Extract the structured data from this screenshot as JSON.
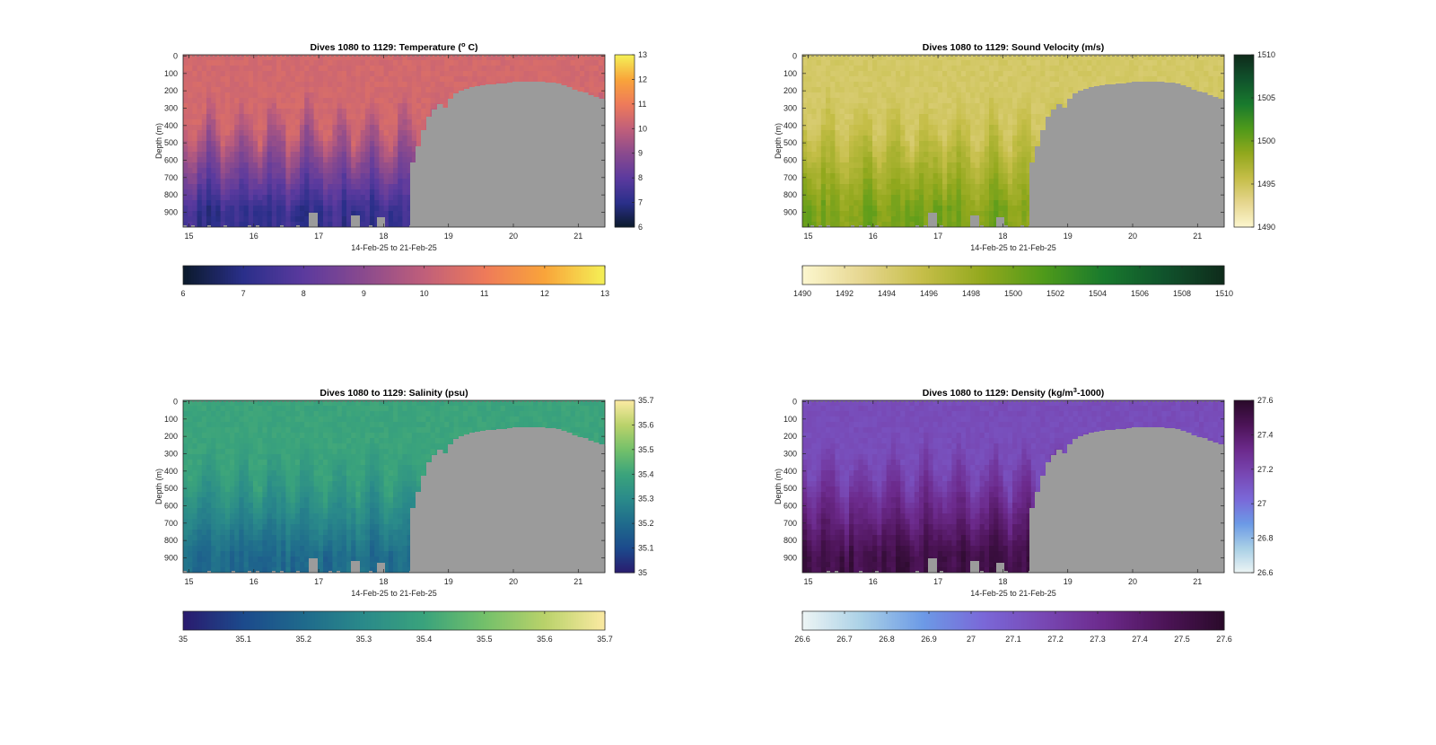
{
  "shared": {
    "xlabel": "14-Feb-25 to 21-Feb-25",
    "ylabel": "Depth (m)",
    "xticks": [
      "15",
      "16",
      "17",
      "18",
      "19",
      "20",
      "21"
    ],
    "yticks": [
      "0",
      "100",
      "200",
      "300",
      "400",
      "500",
      "600",
      "700",
      "800",
      "900"
    ],
    "mask_color": "#9b9b9b"
  },
  "chart_data": [
    {
      "type": "heatmap",
      "title_pre": "Dives 1080 to 1129: Temperature (",
      "title_sup": "o",
      "title_post": " C)",
      "xlabel": "14-Feb-25 to 21-Feb-25",
      "ylabel": "Depth (m)",
      "x_range": [
        "14-Feb-25 21:00",
        "21-Feb-25 09:00"
      ],
      "y_range_m": [
        0,
        990
      ],
      "y_reversed": true,
      "color_range": [
        6,
        13
      ],
      "cbar_vertical_ticks": [
        "6",
        "7",
        "8",
        "9",
        "10",
        "11",
        "12",
        "13"
      ],
      "cbar_horizontal_ticks": [
        "6",
        "7",
        "8",
        "9",
        "10",
        "11",
        "12",
        "13"
      ],
      "colormap": [
        "#0b1a2b",
        "#2a2f8a",
        "#5b3a9e",
        "#8a4a8e",
        "#c05f7a",
        "#ee7a5a",
        "#f9a43a",
        "#f4f056"
      ],
      "surface_value": 10.4,
      "deep_value": 7.3
    },
    {
      "type": "heatmap",
      "title_pre": "Dives 1080 to 1129: Sound Velocity (m/s)",
      "title_sup": "",
      "title_post": "",
      "xlabel": "14-Feb-25 to 21-Feb-25",
      "ylabel": "Depth (m)",
      "x_range": [
        "14-Feb-25 21:00",
        "21-Feb-25 09:00"
      ],
      "y_range_m": [
        0,
        990
      ],
      "y_reversed": true,
      "color_range": [
        1490,
        1510
      ],
      "cbar_vertical_ticks": [
        "1490",
        "1495",
        "1500",
        "1505",
        "1510"
      ],
      "cbar_horizontal_ticks": [
        "1490",
        "1492",
        "1494",
        "1496",
        "1498",
        "1500",
        "1502",
        "1504",
        "1506",
        "1508",
        "1510"
      ],
      "colormap": [
        "#fdf7cf",
        "#e6d68f",
        "#c5be48",
        "#92a81d",
        "#4f9a1a",
        "#197a2d",
        "#10532c",
        "#0f2b1b"
      ],
      "surface_value": 1494.5,
      "deep_value": 1499.5
    },
    {
      "type": "heatmap",
      "title_pre": "Dives 1080 to 1129: Salinity (psu)",
      "title_sup": "",
      "title_post": "",
      "xlabel": "14-Feb-25 to 21-Feb-25",
      "ylabel": "Depth (m)",
      "x_range": [
        "14-Feb-25 21:00",
        "21-Feb-25 09:00"
      ],
      "y_range_m": [
        0,
        990
      ],
      "y_reversed": true,
      "color_range": [
        35,
        35.7
      ],
      "cbar_vertical_ticks": [
        "35",
        "35.1",
        "35.2",
        "35.3",
        "35.4",
        "35.5",
        "35.6",
        "35.7"
      ],
      "cbar_horizontal_ticks": [
        "35",
        "35.1",
        "35.2",
        "35.3",
        "35.4",
        "35.5",
        "35.6",
        "35.7"
      ],
      "colormap": [
        "#2a1b6e",
        "#1c4a8c",
        "#1f6a8c",
        "#2a8a8a",
        "#3aa37c",
        "#73c06a",
        "#b9d26a",
        "#fbeaa2"
      ],
      "surface_value": 35.4,
      "deep_value": 35.2
    },
    {
      "type": "heatmap",
      "title_pre": "Dives 1080 to 1129: Density (kg/m",
      "title_sup": "3",
      "title_post": "-1000)",
      "xlabel": "14-Feb-25 to 21-Feb-25",
      "ylabel": "Depth (m)",
      "x_range": [
        "14-Feb-25 21:00",
        "21-Feb-25 09:00"
      ],
      "y_range_m": [
        0,
        990
      ],
      "y_reversed": true,
      "color_range": [
        26.6,
        27.6
      ],
      "cbar_vertical_ticks": [
        "26.6",
        "26.8",
        "27",
        "27.2",
        "27.4",
        "27.6"
      ],
      "cbar_horizontal_ticks": [
        "26.6",
        "26.7",
        "26.8",
        "26.9",
        "27",
        "27.1",
        "27.2",
        "27.3",
        "27.4",
        "27.5",
        "27.6"
      ],
      "colormap": [
        "#eef5f5",
        "#a9d0e6",
        "#6c9ae6",
        "#7a68d8",
        "#7848b4",
        "#6c2a8c",
        "#4d1458",
        "#2a0a2a"
      ],
      "surface_value": 27.15,
      "deep_value": 27.5
    }
  ]
}
